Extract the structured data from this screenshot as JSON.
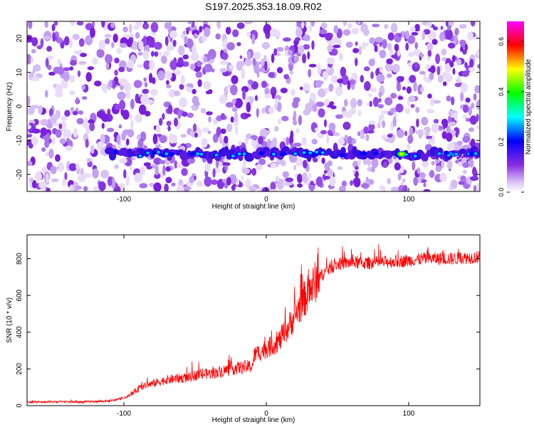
{
  "title": "S197.2025.353.18.09.R02",
  "chart_data": [
    {
      "type": "heatmap",
      "name": "spectrogram",
      "xlabel": "Height of straight line (km)",
      "ylabel": "Frequency (Hz)",
      "xlim": [
        -168,
        150
      ],
      "ylim": [
        -25,
        25
      ],
      "xticks": [
        -100,
        0,
        100
      ],
      "xtick_labels": [
        "-100",
        "0",
        "100"
      ],
      "yticks": [
        -20,
        -10,
        0,
        10,
        20
      ],
      "ytick_labels": [
        "-20",
        "-10",
        "0",
        "10",
        "20"
      ],
      "colorbar": {
        "label": "Normalized spectral amplitude",
        "range": [
          0.0,
          0.68
        ],
        "ticks": [
          0.0,
          0.2,
          0.4,
          0.6
        ],
        "tick_labels": [
          "0.0",
          "0.2",
          "0.4",
          "0.6"
        ],
        "colors": [
          "#ffffff",
          "#8a2be2",
          "#0000ff",
          "#00ffff",
          "#00ff00",
          "#ffff00",
          "#ff0000",
          "#ff00ff"
        ]
      },
      "features": [
        {
          "label": "signal band",
          "freq_hz": -14,
          "x_range_km": [
            -110,
            150
          ],
          "peak_amplitude": 0.55,
          "peak_x_km": 95
        }
      ]
    },
    {
      "type": "line",
      "name": "snr",
      "xlabel": "Height of straight line (km)",
      "ylabel": "SNR (10 * v/v)",
      "xlim": [
        -168,
        150
      ],
      "ylim": [
        0,
        930
      ],
      "xticks": [
        -100,
        0,
        100
      ],
      "xtick_labels": [
        "-100",
        "0",
        "100"
      ],
      "yticks": [
        0,
        200,
        400,
        600,
        800
      ],
      "ytick_labels": [
        "0",
        "200",
        "400",
        "600",
        "800"
      ],
      "color": "#ff0000",
      "series": [
        {
          "name": "SNR",
          "x": [
            -168,
            -150,
            -130,
            -110,
            -100,
            -95,
            -90,
            -85,
            -80,
            -75,
            -70,
            -65,
            -60,
            -55,
            -50,
            -45,
            -40,
            -35,
            -30,
            -25,
            -20,
            -15,
            -10,
            -8,
            -5,
            0,
            5,
            10,
            15,
            20,
            25,
            30,
            35,
            40,
            45,
            50,
            60,
            70,
            80,
            90,
            100,
            110,
            120,
            130,
            140,
            150
          ],
          "values": [
            20,
            20,
            20,
            25,
            40,
            60,
            90,
            110,
            120,
            130,
            140,
            145,
            150,
            150,
            165,
            170,
            175,
            180,
            190,
            200,
            205,
            210,
            215,
            280,
            290,
            310,
            330,
            360,
            420,
            490,
            560,
            620,
            680,
            720,
            750,
            770,
            780,
            775,
            780,
            785,
            790,
            800,
            800,
            800,
            805,
            810
          ]
        }
      ]
    }
  ]
}
